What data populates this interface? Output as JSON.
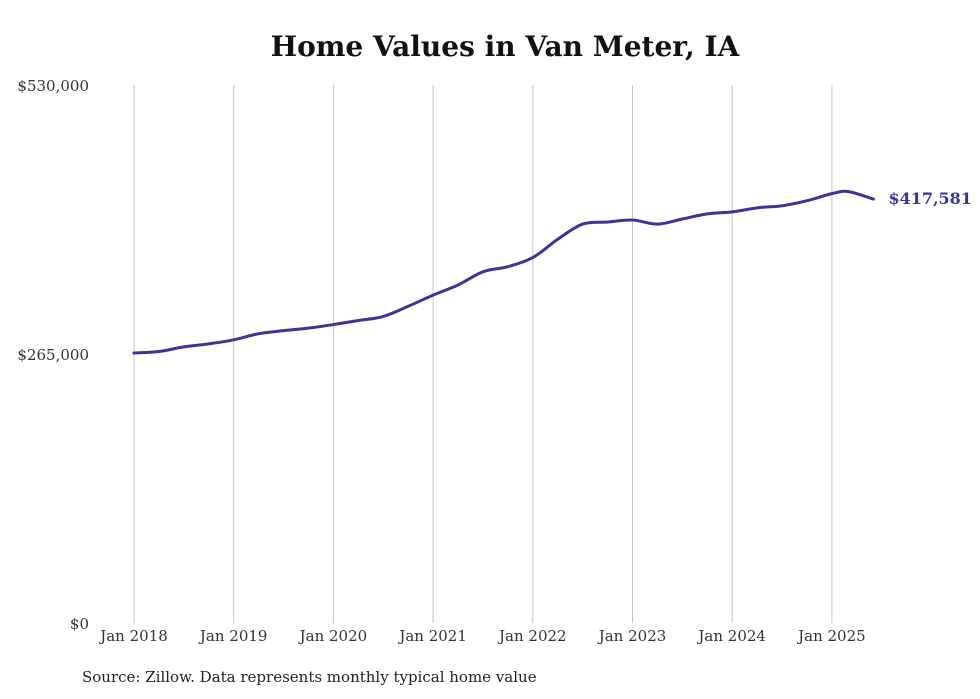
{
  "chart_data": {
    "type": "line",
    "title": "Home Values in Van Meter, IA",
    "xlabel": "",
    "ylabel": "",
    "ylim": [
      0,
      530000
    ],
    "y_ticks": [
      0,
      265000,
      530000
    ],
    "y_tick_labels": [
      "$0",
      "$265,000",
      "$530,000"
    ],
    "x_ticks": [
      "2018-01",
      "2019-01",
      "2020-01",
      "2021-01",
      "2022-01",
      "2023-01",
      "2024-01",
      "2025-01"
    ],
    "x_tick_labels": [
      "Jan 2018",
      "Jan 2019",
      "Jan 2020",
      "Jan 2021",
      "Jan 2022",
      "Jan 2023",
      "Jan 2024",
      "Jan 2025"
    ],
    "grid": "vertical lines at x ticks",
    "series": [
      {
        "color": "#3a3596",
        "points": [
          [
            "2018-01",
            266000
          ],
          [
            "2018-04",
            267500
          ],
          [
            "2018-07",
            272000
          ],
          [
            "2018-10",
            275000
          ],
          [
            "2019-01",
            279000
          ],
          [
            "2019-04",
            285000
          ],
          [
            "2019-07",
            288000
          ],
          [
            "2019-10",
            290500
          ],
          [
            "2020-01",
            294000
          ],
          [
            "2020-04",
            298000
          ],
          [
            "2020-07",
            302000
          ],
          [
            "2020-10",
            312000
          ],
          [
            "2021-01",
            323000
          ],
          [
            "2021-04",
            333000
          ],
          [
            "2021-07",
            346000
          ],
          [
            "2021-10",
            351000
          ],
          [
            "2022-01",
            360000
          ],
          [
            "2022-04",
            378000
          ],
          [
            "2022-07",
            393000
          ],
          [
            "2022-10",
            395000
          ],
          [
            "2023-01",
            397000
          ],
          [
            "2023-04",
            393000
          ],
          [
            "2023-07",
            398000
          ],
          [
            "2023-10",
            403000
          ],
          [
            "2024-01",
            405000
          ],
          [
            "2024-04",
            409000
          ],
          [
            "2024-07",
            411000
          ],
          [
            "2024-10",
            416000
          ],
          [
            "2025-01",
            423000
          ],
          [
            "2025-03",
            425000
          ],
          [
            "2025-06",
            417581
          ]
        ],
        "end_label": "$417,581"
      }
    ]
  },
  "footer": {
    "source": "Source: Zillow. Data represents monthly typical home value"
  }
}
